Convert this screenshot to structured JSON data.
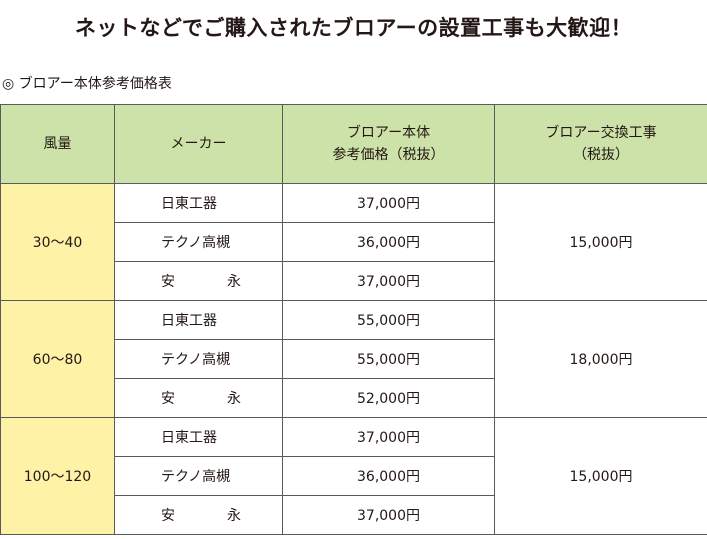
{
  "headline": "ネットなどでご購入されたブロアーの設置工事も大歓迎！",
  "subtitle": "◎ ブロアー本体参考価格表",
  "table": {
    "headers": {
      "flow": "風量",
      "maker": "メーカー",
      "price": "ブロアー本体\n参考価格（税抜）",
      "exchange": "ブロアー交換工事\n（税抜）"
    },
    "groups": [
      {
        "flow": "30〜40",
        "exchange": "15,000円",
        "rows": [
          {
            "maker": "日東工器",
            "price": "37,000円"
          },
          {
            "maker": "テクノ高槻",
            "price": "36,000円"
          },
          {
            "maker_a": "安",
            "maker_b": "永",
            "price": "37,000円"
          }
        ]
      },
      {
        "flow": "60〜80",
        "exchange": "18,000円",
        "rows": [
          {
            "maker": "日東工器",
            "price": "55,000円"
          },
          {
            "maker": "テクノ高槻",
            "price": "55,000円"
          },
          {
            "maker_a": "安",
            "maker_b": "永",
            "price": "52,000円"
          }
        ]
      },
      {
        "flow": "100〜120",
        "exchange": "15,000円",
        "rows": [
          {
            "maker": "日東工器",
            "price": "37,000円"
          },
          {
            "maker": "テクノ高槻",
            "price": "36,000円"
          },
          {
            "maker_a": "安",
            "maker_b": "永",
            "price": "37,000円"
          }
        ]
      }
    ]
  }
}
